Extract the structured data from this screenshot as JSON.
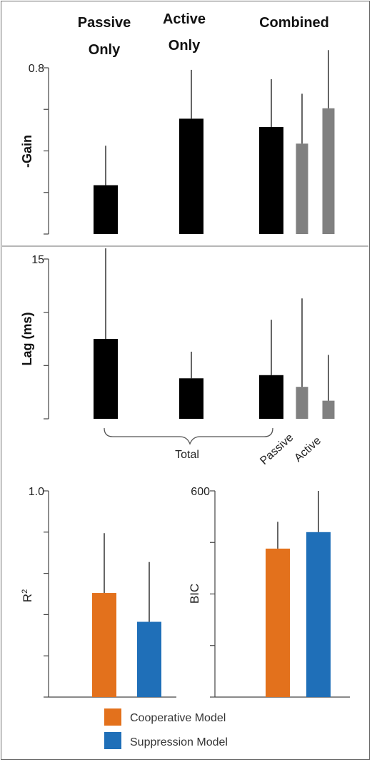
{
  "colors": {
    "black_bar": "#000000",
    "gray_bar": "#808080",
    "cooperative": "#e3711c",
    "suppression": "#1f6fb8",
    "axis": "#444444"
  },
  "headers": [
    "Passive\nOnly",
    "Active\nOnly",
    "Combined"
  ],
  "chart_data": [
    {
      "type": "bar",
      "ylabel": "-Gain",
      "ylim": [
        0,
        0.8
      ],
      "y_tick_labels": [
        {
          "value": 0.8,
          "label": "0.8"
        }
      ],
      "y_ticks": [
        0,
        0.2,
        0.4,
        0.6,
        0.8
      ],
      "series": [
        {
          "group": "Passive Only",
          "color": "black",
          "value": 0.235,
          "error": 0.19
        },
        {
          "group": "Active Only",
          "color": "black",
          "value": 0.555,
          "error": 0.235
        },
        {
          "group": "Combined",
          "color": "black",
          "value": 0.515,
          "error": 0.23
        },
        {
          "group": "Combined",
          "color": "gray",
          "value": 0.435,
          "error": 0.24
        },
        {
          "group": "Combined",
          "color": "gray",
          "value": 0.605,
          "error": 0.28
        }
      ]
    },
    {
      "type": "bar",
      "ylabel": "Lag (ms)",
      "ylim": [
        0,
        15
      ],
      "y_tick_labels": [
        {
          "value": 15,
          "label": "15"
        }
      ],
      "y_ticks": [
        0,
        5,
        10,
        15
      ],
      "series": [
        {
          "group": "Passive Only",
          "color": "black",
          "value": 7.5,
          "error": 8.5
        },
        {
          "group": "Active Only",
          "color": "black",
          "value": 3.8,
          "error": 2.5
        },
        {
          "group": "Combined",
          "color": "black",
          "value": 4.1,
          "error": 5.2
        },
        {
          "group": "Combined",
          "color": "gray",
          "value": 3.0,
          "error": 8.3
        },
        {
          "group": "Combined",
          "color": "gray",
          "value": 1.7,
          "error": 4.3
        }
      ],
      "x_annotations": {
        "bracket_label": "Total",
        "rotated_labels": [
          "Passive",
          "Active"
        ]
      }
    },
    {
      "type": "bar",
      "ylabel": "R2",
      "ylim": [
        0,
        1.0
      ],
      "y_tick_labels": [
        {
          "value": 1.0,
          "label": "1.0"
        }
      ],
      "y_ticks": [
        0,
        0.2,
        0.4,
        0.6,
        0.8,
        1.0
      ],
      "series": [
        {
          "name": "Cooperative Model",
          "value": 0.505,
          "error": 0.29
        },
        {
          "name": "Suppression Model",
          "value": 0.365,
          "error": 0.29
        }
      ]
    },
    {
      "type": "bar",
      "ylabel": "BIC",
      "ylim": [
        0,
        600
      ],
      "y_tick_labels": [
        {
          "value": 600,
          "label": "600"
        }
      ],
      "y_ticks": [
        0,
        150,
        300,
        450,
        600
      ],
      "series": [
        {
          "name": "Cooperative Model",
          "value": 432,
          "error": 78
        },
        {
          "name": "Suppression Model",
          "value": 480,
          "error": 120
        }
      ]
    }
  ],
  "legend": [
    {
      "label": "Cooperative Model",
      "color": "#e3711c"
    },
    {
      "label": "Suppression Model",
      "color": "#1f6fb8"
    }
  ]
}
